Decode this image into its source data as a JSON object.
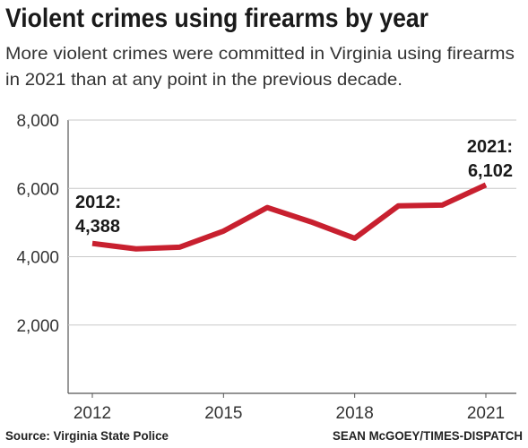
{
  "chart_data": {
    "type": "line",
    "title": "Violent crimes using firearms by  year",
    "subtitle": [
      "More violent crimes were committed in Virginia using firearms",
      "in 2021 than at any point in the previous decade."
    ],
    "x": [
      2012,
      2013,
      2014,
      2015,
      2016,
      2017,
      2018,
      2019,
      2020,
      2021
    ],
    "series": [
      {
        "name": "Violent crimes using firearms",
        "color": "#c8202f",
        "values": [
          4388,
          4230,
          4280,
          4750,
          5440,
          5020,
          4540,
          5490,
          5510,
          6102
        ]
      }
    ],
    "xticks": [
      2012,
      2015,
      2018,
      2021
    ],
    "ylim": [
      0,
      8000
    ],
    "yticks": [
      {
        "value": 2000,
        "label": "2,000"
      },
      {
        "value": 4000,
        "label": "4,000"
      },
      {
        "value": 6000,
        "label": "6,000"
      },
      {
        "value": 8000,
        "label": "8,000"
      }
    ],
    "grid": true,
    "annotations": [
      {
        "lines": [
          "2012:",
          "4,388"
        ]
      },
      {
        "lines": [
          "2021:",
          "6,102"
        ]
      }
    ],
    "source": "Source: Virginia State Police",
    "credit": "SEAN McGOEY/TIMES-DISPATCH"
  }
}
